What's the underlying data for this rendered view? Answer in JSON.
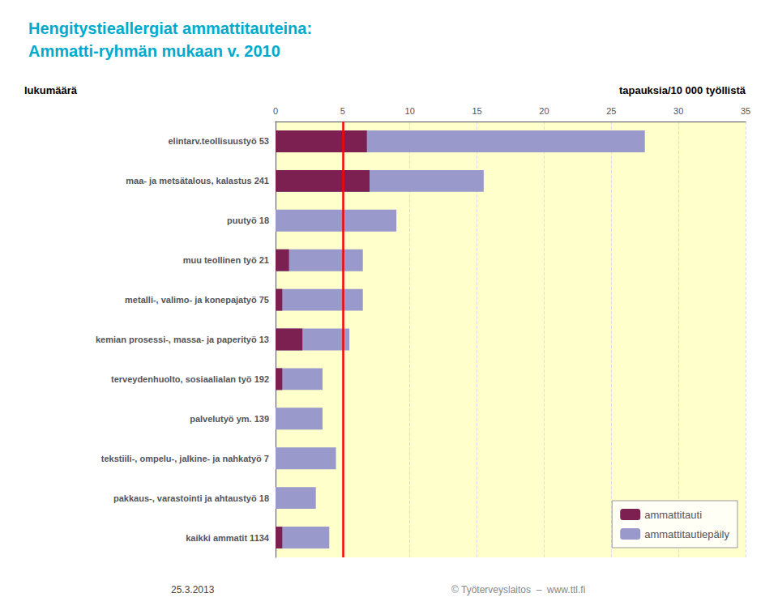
{
  "chart_data": {
    "type": "bar",
    "orientation": "horizontal",
    "stacked": false,
    "title": "Hengitystieallergiat ammattitauteina:",
    "subtitle": "Ammatti-ryhmän mukaan v. 2010",
    "xlabel": "tapauksia/10 000 työllistä",
    "ylabel": "lukumäärä",
    "categories": [
      "elintarv.teollisuustyö 53",
      "maa- ja metsätalous, kalastus 241",
      "puutyö 18",
      "muu teollinen työ 21",
      "metalli-, valimo- ja konepajatyö 75",
      "kemian prosessi-, massa- ja paperityö 13",
      "terveydenhuolto, sosiaalialan työ 192",
      "palvelutyö ym. 139",
      "tekstiili-, ompelu-, jalkine- ja nahkatyö 7",
      "pakkaus-, varastointi ja ahtaustyö 18",
      "kaikki ammatit 1134"
    ],
    "series": [
      {
        "name": "ammattitauti",
        "color": "#7b2050",
        "values": [
          6.8,
          7.0,
          0.0,
          1.0,
          0.5,
          2.0,
          0.5,
          0.0,
          0.0,
          0.0,
          0.5
        ]
      },
      {
        "name": "ammattitautiepäily",
        "color": "#9999cc",
        "values": [
          27.5,
          15.5,
          9.0,
          6.5,
          6.5,
          5.5,
          3.5,
          3.5,
          4.5,
          3.0,
          4.0
        ]
      }
    ],
    "xlim": [
      0,
      35
    ],
    "xticks": [
      0,
      5,
      10,
      15,
      20,
      25,
      30,
      35
    ],
    "reference_lines": [
      {
        "axis": "x",
        "value": 5.0,
        "color": "#ff0000"
      }
    ],
    "grid": true,
    "legend": "lower right",
    "annotations": [
      "25.3.2013",
      "© Työterveyslaitos  –  www.ttl.fi"
    ]
  }
}
